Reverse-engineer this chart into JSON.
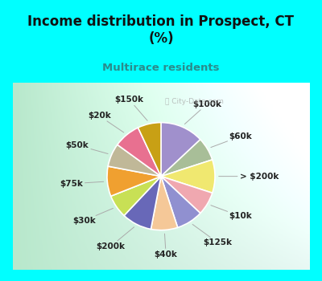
{
  "title": "Income distribution in Prospect, CT\n(%)",
  "subtitle": "Multirace residents",
  "title_color": "#111111",
  "subtitle_color": "#2a8c8c",
  "bg_cyan": "#00ffff",
  "bg_chart_gradient_left": "#b8e8cc",
  "bg_chart_gradient_right": "#e8f8f4",
  "labels": [
    "$100k",
    "$60k",
    "> $200k",
    "$10k",
    "$125k",
    "$40k",
    "$200k",
    "$30k",
    "$75k",
    "$50k",
    "$20k",
    "$150k"
  ],
  "values": [
    13,
    7,
    10,
    7,
    8,
    8,
    9,
    7,
    9,
    7,
    8,
    7
  ],
  "colors": [
    "#a090cc",
    "#a8be98",
    "#f0e870",
    "#f0a8b0",
    "#9090d0",
    "#f5c898",
    "#6868b8",
    "#c8e055",
    "#f0a030",
    "#c0b898",
    "#e87090",
    "#c8a015"
  ],
  "label_fontsize": 7.5,
  "wedge_edge_color": "#ffffff",
  "wedge_linewidth": 1.2,
  "title_fontsize": 12,
  "subtitle_fontsize": 9.5
}
